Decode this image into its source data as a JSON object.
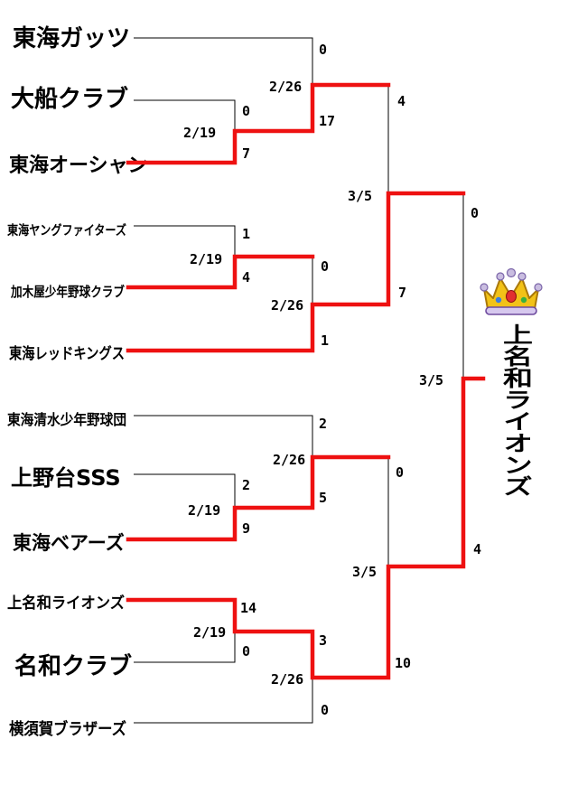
{
  "teams": [
    "東海ガッツ",
    "大船クラブ",
    "東海オーシャン",
    "東海ヤングファイターズ",
    "加木屋少年野球クラブ",
    "東海レッドキングス",
    "東海清水少年野球団",
    "上野台SSS",
    "東海ベアーズ",
    "上名和ライオンズ",
    "名和クラブ",
    "横須賀ブラザーズ"
  ],
  "matches": [
    {
      "id": "r1a",
      "date": "2/19",
      "score_top": "0",
      "score_bottom": "7"
    },
    {
      "id": "r1b",
      "date": "2/19",
      "score_top": "1",
      "score_bottom": "4"
    },
    {
      "id": "r1c",
      "date": "2/19",
      "score_top": "2",
      "score_bottom": "9"
    },
    {
      "id": "r1d",
      "date": "2/19",
      "score_top": "14",
      "score_bottom": "0"
    },
    {
      "id": "r2a",
      "date": "2/26",
      "score_top": "0",
      "score_bottom": "17"
    },
    {
      "id": "r2b",
      "date": "2/26",
      "score_top": "0",
      "score_bottom": "1"
    },
    {
      "id": "r2c",
      "date": "2/26",
      "score_top": "2",
      "score_bottom": "5"
    },
    {
      "id": "r2d",
      "date": "2/26",
      "score_top": "3",
      "score_bottom": "0"
    },
    {
      "id": "sf1",
      "date": "3/5",
      "score_top": "4",
      "score_bottom": "7"
    },
    {
      "id": "sf2",
      "date": "3/5",
      "score_top": "0",
      "score_bottom": "10"
    },
    {
      "id": "final",
      "date": "3/5",
      "score_top": "0",
      "score_bottom": "4"
    }
  ],
  "champion": {
    "name": "上名和ライオンズ",
    "icon": "crown-icon"
  },
  "colors": {
    "winner_line": "#ee1111",
    "loser_line": "#000000"
  }
}
